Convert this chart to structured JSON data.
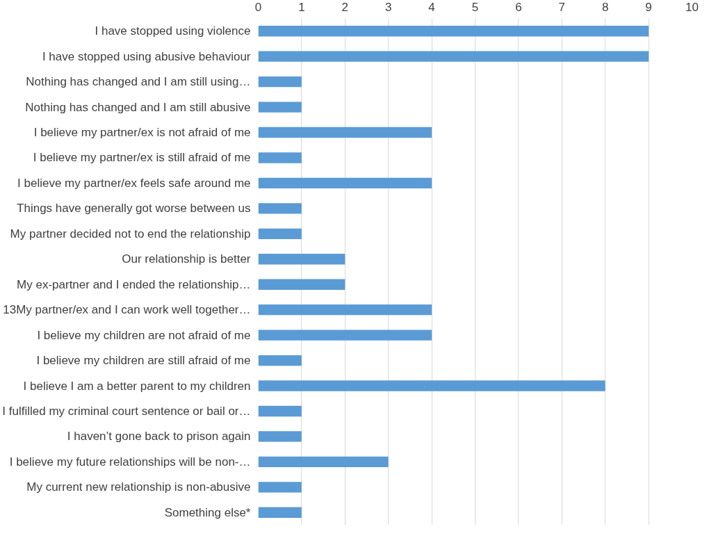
{
  "chart_data": {
    "type": "bar",
    "orientation": "horizontal",
    "categories": [
      "I have stopped using violence",
      "I have stopped using abusive behaviour",
      "Nothing has changed and I am still using…",
      "Nothing has changed and I am still abusive",
      "I believe my partner/ex is not afraid of me",
      "I believe my partner/ex is still afraid of me",
      "I believe my partner/ex feels safe around me",
      "Things have generally got worse between us",
      "My partner decided not to end the relationship",
      "Our relationship is better",
      "My ex-partner and I ended the relationship…",
      "13My partner/ex and I can work well together…",
      "I believe my children are not afraid of me",
      "I believe my children are still afraid of me",
      "I believe I am a better parent to my children",
      "I fulfilled my criminal court sentence or bail or…",
      "I haven’t gone back to prison again",
      "I believe my future relationships will be non-…",
      "My current new relationship is non-abusive",
      "Something else*"
    ],
    "values": [
      9,
      9,
      1,
      1,
      4,
      1,
      4,
      1,
      1,
      2,
      2,
      4,
      4,
      1,
      8,
      1,
      1,
      3,
      1,
      1
    ],
    "color": "#5b9bd5",
    "xlim": [
      0,
      10
    ],
    "xticks": [
      0,
      1,
      2,
      3,
      4,
      5,
      6,
      7,
      8,
      9,
      10
    ],
    "grid": "x"
  }
}
